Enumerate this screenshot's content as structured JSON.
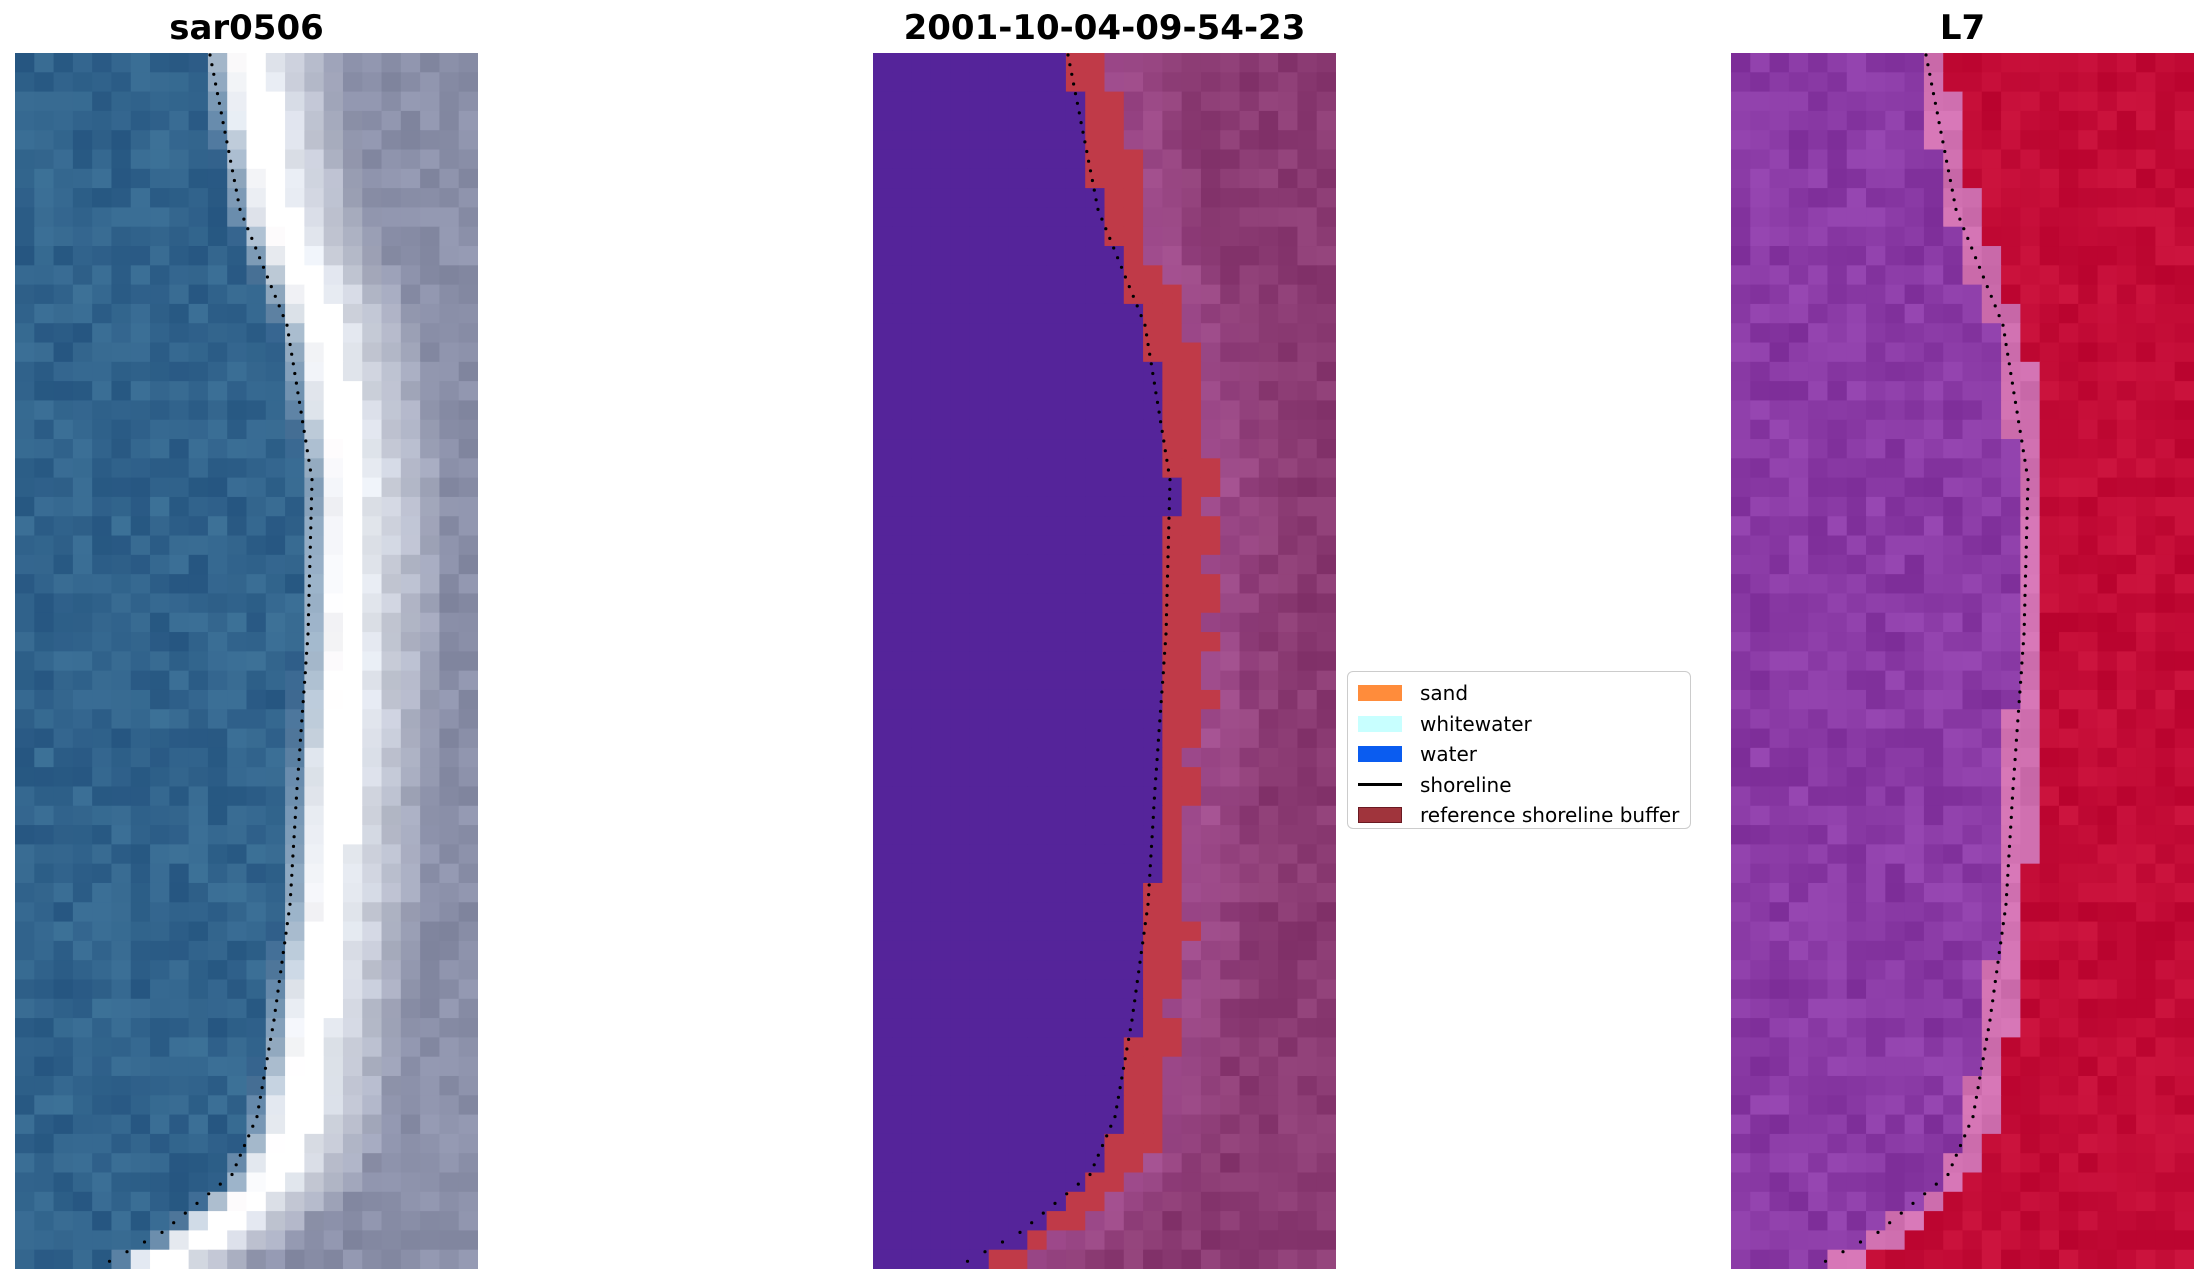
{
  "panels": [
    {
      "title": "sar0506",
      "kind": "rgb"
    },
    {
      "title": "2001-10-04-09-54-23",
      "kind": "classified"
    },
    {
      "title": "L7",
      "kind": "index"
    }
  ],
  "legend": {
    "items": [
      {
        "label": "sand",
        "color": "#ff8c3b",
        "icon": "swatch"
      },
      {
        "label": "whitewater",
        "color": "#c8ffff",
        "icon": "swatch"
      },
      {
        "label": "water",
        "color": "#0a5cf0",
        "icon": "swatch"
      },
      {
        "label": "shoreline",
        "color": "#000000",
        "icon": "line"
      },
      {
        "label": "reference shoreline buffer",
        "color": "#a0343c",
        "icon": "swatch"
      }
    ]
  },
  "colors": {
    "rgb_water": "#2f5f8a",
    "rgb_surf": "#e8ecf2",
    "rgb_land": "#8a8fa8",
    "class_water": "#55249a",
    "class_buffer": "#c03a48",
    "class_land": "#8a3a72",
    "index_water": "#8a3aa5",
    "index_land": "#c00a35",
    "index_transition": "#d070b0"
  }
}
